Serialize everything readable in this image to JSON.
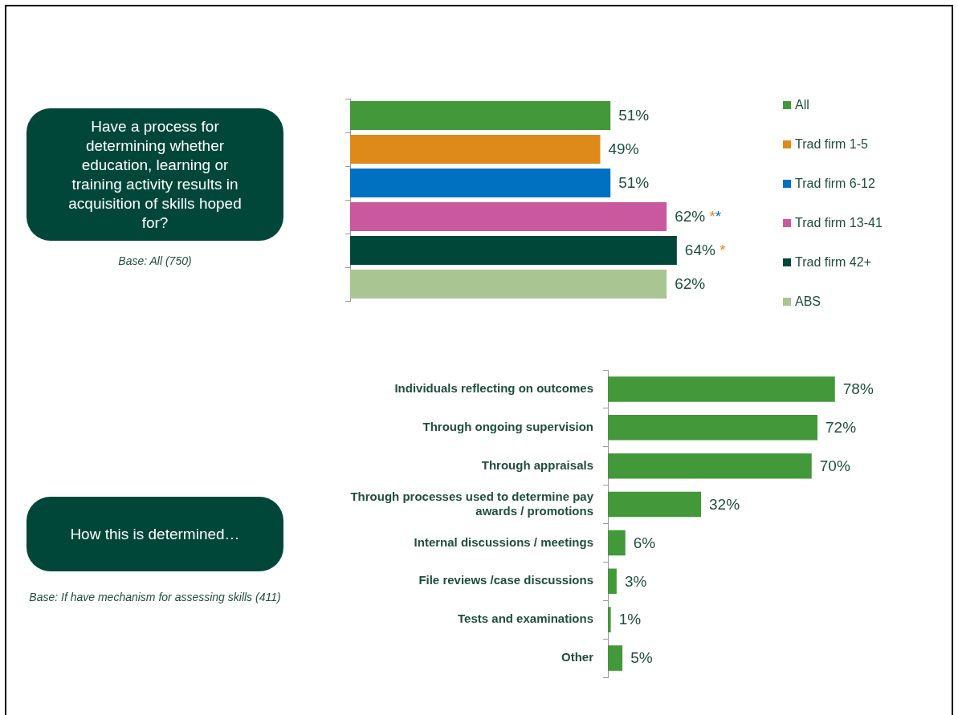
{
  "chart_data": [
    {
      "type": "other",
      "title": "Have a process for determining whether education, learning or training activity results in acquisition of skills hoped for?",
      "annotations": [
        "Base: All (750)"
      ]
    },
    {
      "type": "bar",
      "orientation": "horizontal",
      "stacked": true,
      "categories": [
        null,
        null,
        null,
        null,
        null,
        null
      ],
      "tick_labels": false,
      "legend": "right",
      "series": [
        {
          "name": "All",
          "color": "#43983a",
          "values": [
            51,
            null,
            null,
            null,
            null,
            null
          ],
          "value_labels": [
            "51%",
            null,
            null,
            null,
            null,
            null
          ]
        },
        {
          "name": "Trad firm 1-5",
          "color": "#dd8a1b",
          "values": [
            null,
            49,
            null,
            null,
            null,
            null
          ],
          "value_labels": [
            null,
            "49%",
            null,
            null,
            null,
            null
          ]
        },
        {
          "name": "Trad firm 6-12",
          "color": "#0070c0",
          "values": [
            null,
            null,
            51,
            null,
            null,
            null
          ],
          "value_labels": [
            null,
            null,
            "51%",
            null,
            null,
            null
          ]
        },
        {
          "name": "Trad firm 13-41",
          "color": "#c9589f",
          "values": [
            null,
            null,
            null,
            62,
            null,
            null
          ],
          "value_labels": [
            null,
            null,
            null,
            "62% **",
            null,
            null
          ]
        },
        {
          "name": "Trad firm 42+",
          "color": "#00473a",
          "values": [
            null,
            null,
            null,
            null,
            64,
            null
          ],
          "value_labels": [
            null,
            null,
            null,
            null,
            "64% *",
            null
          ]
        },
        {
          "name": "ABS",
          "color": "#a9c592",
          "values": [
            null,
            null,
            null,
            null,
            null,
            62
          ],
          "value_labels": [
            null,
            null,
            null,
            null,
            null,
            "62%"
          ]
        }
      ]
    },
    {
      "type": "other",
      "title": "How this is determined…",
      "annotations": [
        "Base: If have mechanism for assessing skills (411)"
      ]
    },
    {
      "type": "bar",
      "orientation": "horizontal",
      "tick_labels": "y",
      "categories": [
        "Individuals reflecting on outcomes",
        "Through ongoing supervision",
        "Through appraisals",
        "Through processes used to determine pay awards / promotions",
        "Internal discussions / meetings",
        "File reviews /case discussions",
        "Tests and examinations",
        "Other"
      ],
      "color": "#43983a",
      "values": [
        78,
        72,
        70,
        32,
        6,
        3,
        1,
        5
      ],
      "value_labels": [
        "78%",
        "72%",
        "70%",
        "32%",
        "6%",
        "3%",
        "1%",
        "5%"
      ]
    }
  ]
}
